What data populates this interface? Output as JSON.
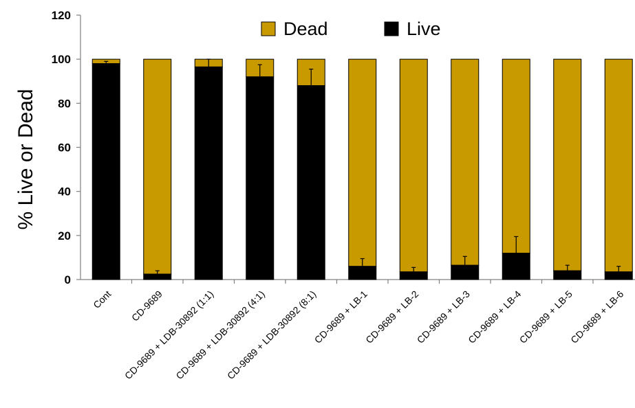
{
  "chart_data": {
    "type": "bar",
    "stacked": true,
    "title": "",
    "xlabel": "",
    "ylabel": "% Live or Dead",
    "ylim": [
      0,
      120
    ],
    "yticks": [
      0,
      20,
      40,
      60,
      80,
      100,
      120
    ],
    "grid": false,
    "legend_position": "top",
    "categories": [
      "Cont",
      "CD-9689",
      "CD-9689 + LDB-30892 (1:1)",
      "CD-9689 + LDB-30892 (4:1)",
      "CD-9689 + LDB-30892 (8:1)",
      "CD-9689 + LB-1",
      "CD-9689 + LB-2",
      "CD-9689 + LB-3",
      "CD-9689 + LB-4",
      "CD-9689 + LB-5",
      "CD-9689 + LB-6"
    ],
    "series": [
      {
        "name": "Live",
        "color": "#000000",
        "values": [
          98,
          2.5,
          96.5,
          92,
          88,
          6,
          3.5,
          6.5,
          12,
          4,
          3.5
        ],
        "error": [
          1,
          1.5,
          3.5,
          5.5,
          7.5,
          3.5,
          2,
          4,
          7.5,
          2.5,
          2.5
        ]
      },
      {
        "name": "Dead",
        "color": "#C99A00",
        "values": [
          2,
          97.5,
          3.5,
          8,
          12,
          94,
          96.5,
          93.5,
          88,
          96,
          96.5
        ]
      }
    ],
    "legend": [
      "Dead",
      "Live"
    ]
  }
}
